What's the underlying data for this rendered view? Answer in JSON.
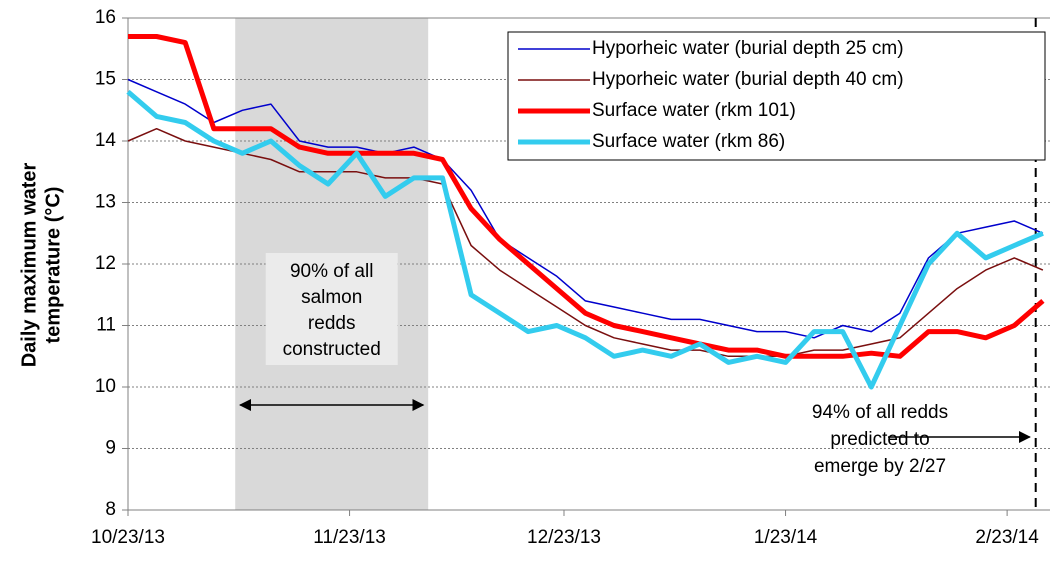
{
  "chart_data": {
    "type": "line",
    "y_label": [
      "Daily maximum water",
      "temperature (°C)"
    ],
    "x": [
      "2013-10-23",
      "2013-10-27",
      "2013-10-31",
      "2013-11-04",
      "2013-11-08",
      "2013-11-12",
      "2013-11-16",
      "2013-11-20",
      "2013-11-24",
      "2013-11-28",
      "2013-12-02",
      "2013-12-06",
      "2013-12-10",
      "2013-12-14",
      "2013-12-18",
      "2013-12-22",
      "2013-12-26",
      "2013-12-30",
      "2014-01-03",
      "2014-01-07",
      "2014-01-11",
      "2014-01-15",
      "2014-01-19",
      "2014-01-23",
      "2014-01-27",
      "2014-01-31",
      "2014-02-04",
      "2014-02-08",
      "2014-02-12",
      "2014-02-16",
      "2014-02-20",
      "2014-02-24",
      "2014-02-28"
    ],
    "series": [
      {
        "name": "Hyporheic water (burial depth 25 cm)",
        "color": "#0000cc",
        "width": 1.5,
        "values": [
          15.0,
          14.8,
          14.6,
          14.3,
          14.5,
          14.6,
          14.0,
          13.9,
          13.9,
          13.8,
          13.9,
          13.7,
          13.2,
          12.4,
          12.1,
          11.8,
          11.4,
          11.3,
          11.2,
          11.1,
          11.1,
          11.0,
          10.9,
          10.9,
          10.8,
          11.0,
          10.9,
          11.2,
          12.1,
          12.5,
          12.6,
          12.7,
          12.5
        ]
      },
      {
        "name": "Hyporheic water (burial depth 40 cm)",
        "color": "#7a0f0f",
        "width": 1.5,
        "values": [
          14.0,
          14.2,
          14.0,
          13.9,
          13.8,
          13.7,
          13.5,
          13.5,
          13.5,
          13.4,
          13.4,
          13.3,
          12.3,
          11.9,
          11.6,
          11.3,
          11.0,
          10.8,
          10.7,
          10.6,
          10.6,
          10.5,
          10.5,
          10.5,
          10.6,
          10.6,
          10.7,
          10.8,
          11.2,
          11.6,
          11.9,
          12.1,
          11.9
        ]
      },
      {
        "name": "Surface water (rkm 101)",
        "color": "#ff0000",
        "width": 5,
        "values": [
          15.7,
          15.7,
          15.6,
          14.2,
          14.2,
          14.2,
          13.9,
          13.8,
          13.8,
          13.8,
          13.8,
          13.7,
          12.9,
          12.4,
          12.0,
          11.6,
          11.2,
          11.0,
          10.9,
          10.8,
          10.7,
          10.6,
          10.6,
          10.5,
          10.5,
          10.5,
          10.55,
          10.5,
          10.9,
          10.9,
          10.8,
          11.0,
          11.4
        ]
      },
      {
        "name": "Surface water (rkm 86)",
        "color": "#33ccee",
        "width": 5,
        "values": [
          14.8,
          14.4,
          14.3,
          14.0,
          13.8,
          14.0,
          13.6,
          13.3,
          13.8,
          13.1,
          13.4,
          13.4,
          11.5,
          11.2,
          10.9,
          11.0,
          10.8,
          10.5,
          10.6,
          10.5,
          10.7,
          10.4,
          10.5,
          10.4,
          10.9,
          10.9,
          10.0,
          11.0,
          12.0,
          12.5,
          12.1,
          12.3,
          12.5
        ]
      }
    ],
    "xlim": [
      "2013-10-23",
      "2014-03-01"
    ],
    "xticks": [
      {
        "value": "2013-10-23",
        "label": "10/23/13"
      },
      {
        "value": "2013-11-23",
        "label": "11/23/13"
      },
      {
        "value": "2013-12-23",
        "label": "12/23/13"
      },
      {
        "value": "2014-01-23",
        "label": "1/23/14"
      },
      {
        "value": "2014-02-23",
        "label": "2/23/14"
      }
    ],
    "ylim": [
      8,
      16
    ],
    "yticks": [
      8,
      9,
      10,
      11,
      12,
      13,
      14,
      15,
      16
    ],
    "grid": true,
    "shaded_span": [
      "2013-11-07",
      "2013-12-04"
    ],
    "shaded_note": [
      "90% of all",
      "salmon",
      "redds",
      "constructed"
    ],
    "vline": "2014-02-27",
    "vline_note": [
      "94% of all redds",
      "predicted to",
      "emerge by 2/27"
    ],
    "legend": "upper right"
  }
}
